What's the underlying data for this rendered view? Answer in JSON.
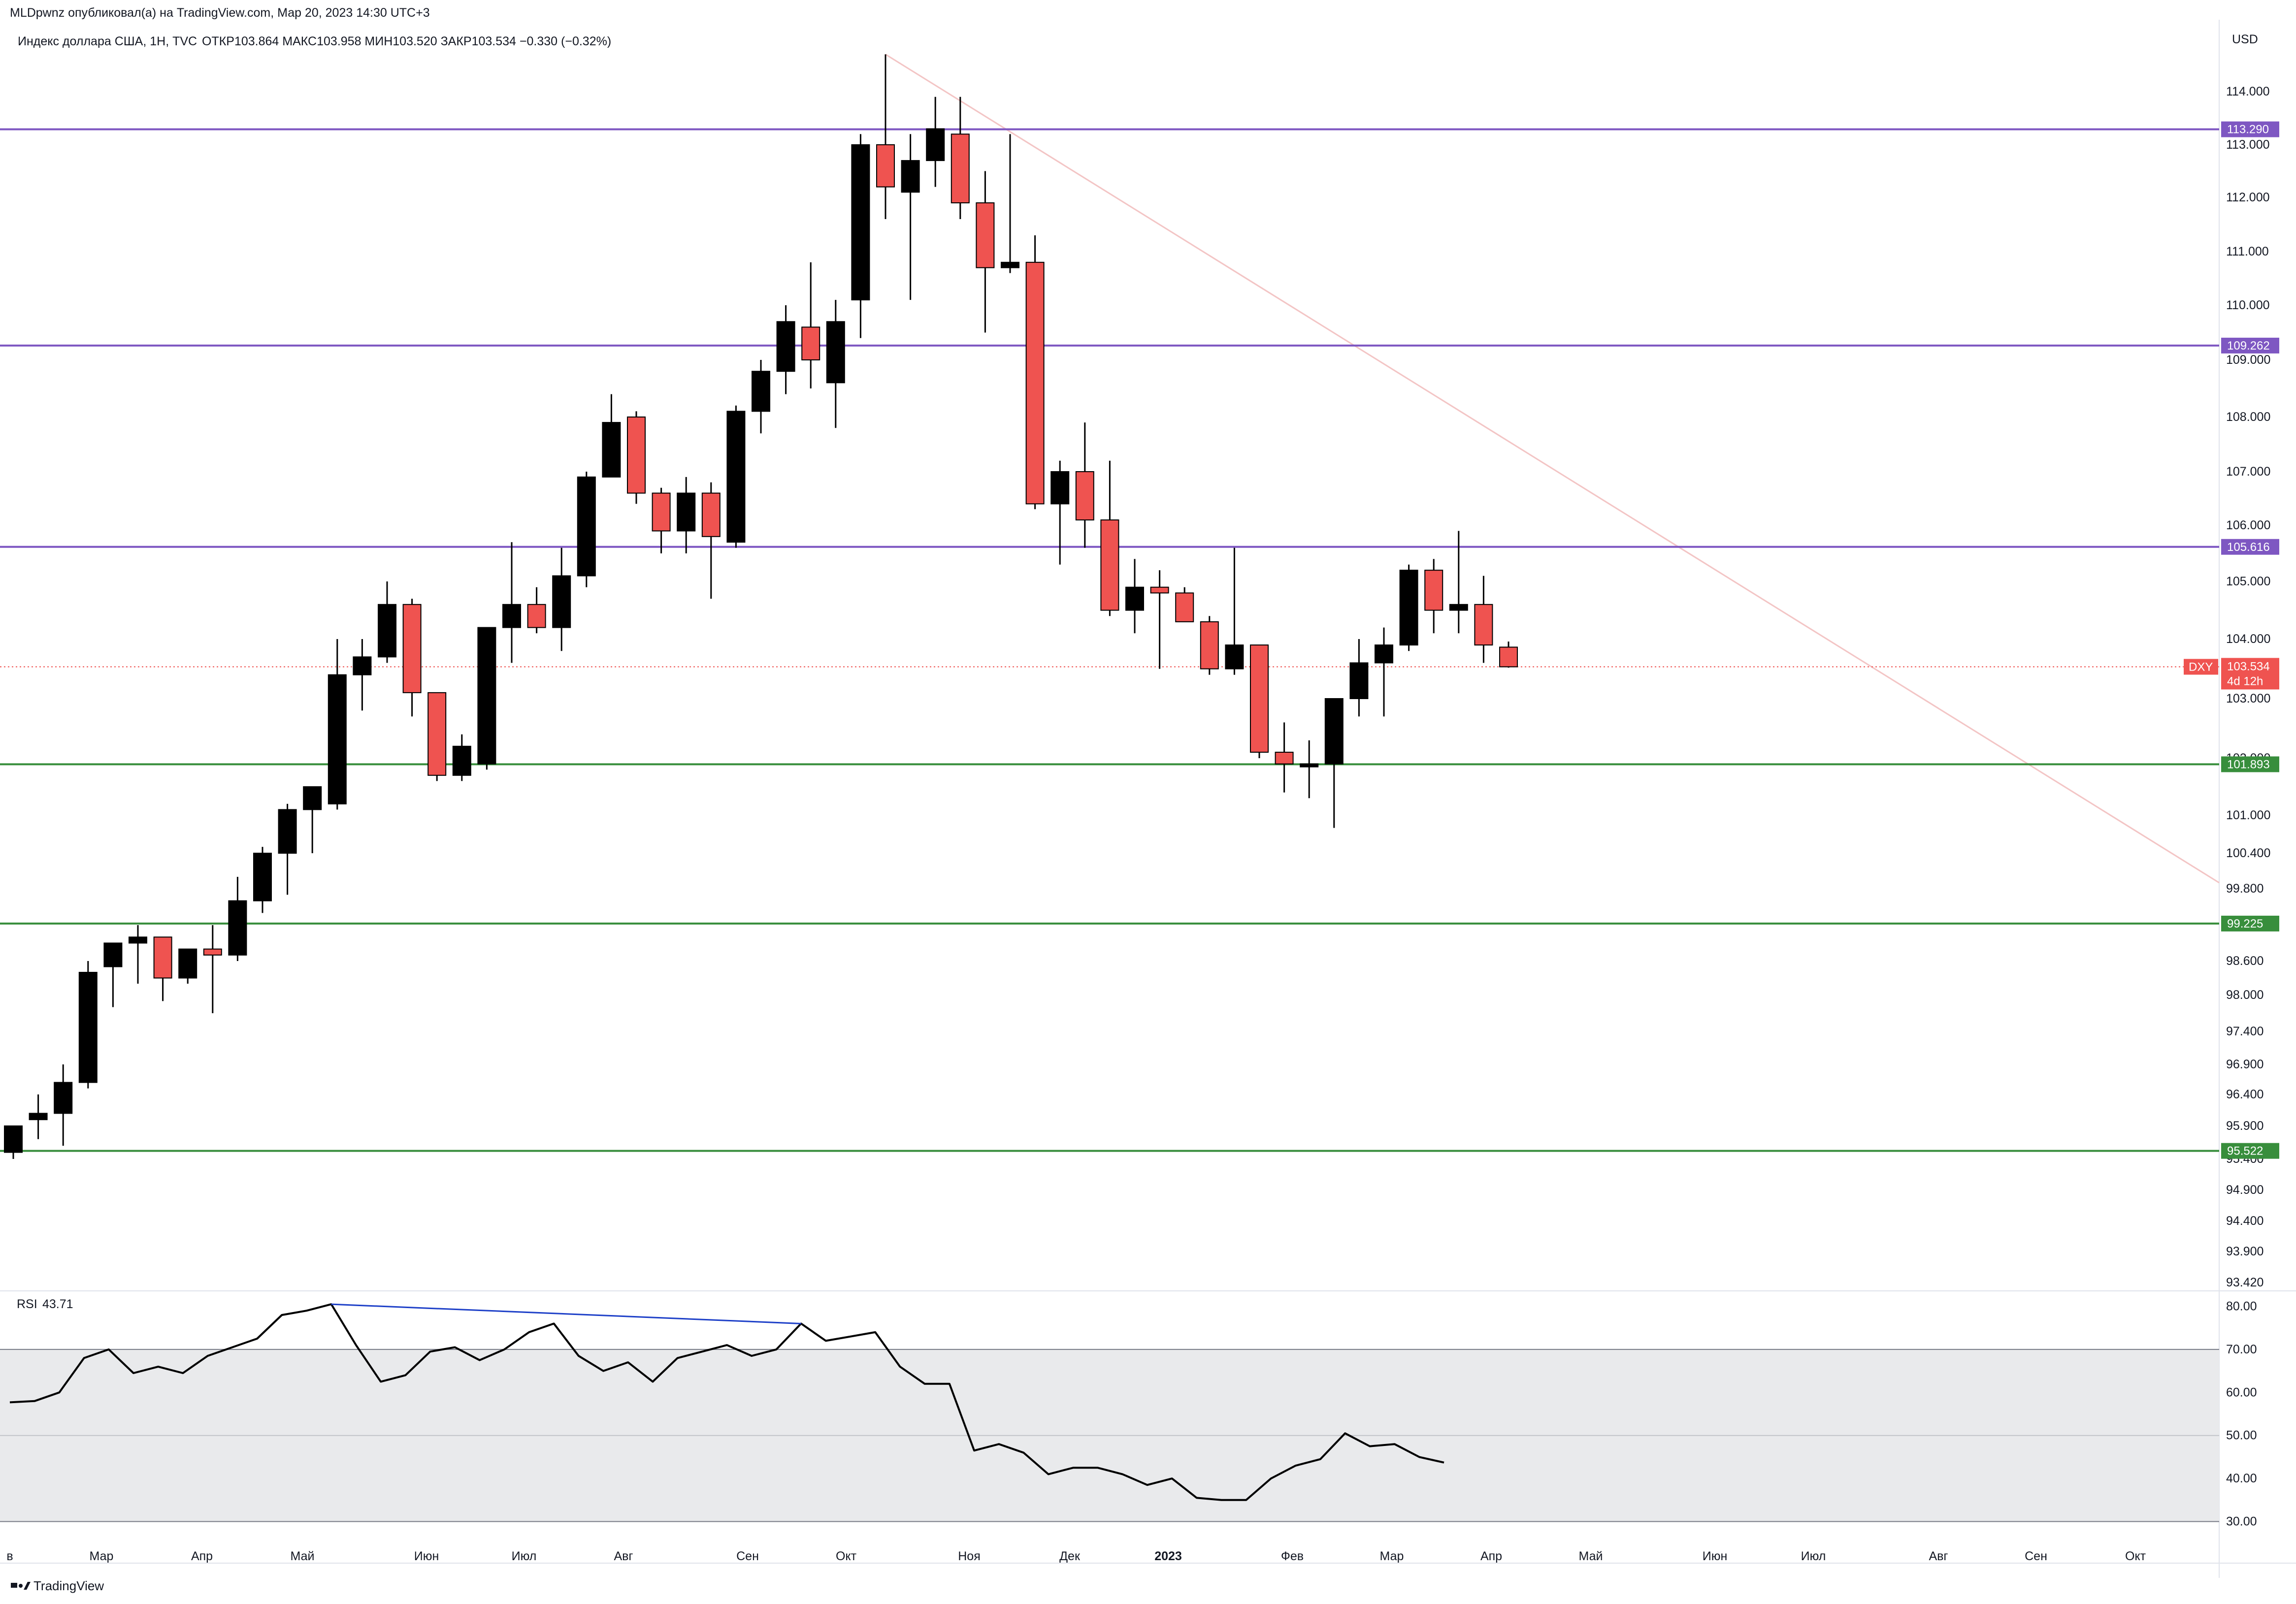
{
  "header": {
    "published": "MLDpwnz опубликовал(а) на TradingView.com, Мар 20, 2023 14:30 UTC+3",
    "symbol": "Индекс доллара США, 1Н, TVC",
    "ohlc": "ОТКР103.864  МАКС103.958  МИН103.520  ЗАКР103.534  −0.330 (−0.32%)"
  },
  "footer": {
    "brand": "TradingView"
  },
  "price_axis": {
    "currency": "USD",
    "ticks": [
      "114.000",
      "113.000",
      "112.000",
      "111.000",
      "110.000",
      "109.000",
      "108.000",
      "107.000",
      "106.000",
      "105.000",
      "104.000",
      "103.000",
      "102.000",
      "101.000",
      "100.400",
      "99.800",
      "99.200",
      "98.600",
      "98.000",
      "97.400",
      "96.900",
      "96.400",
      "95.900",
      "95.400",
      "94.900",
      "94.400",
      "93.900",
      "93.420"
    ]
  },
  "time_axis": {
    "labels": [
      "в",
      "Мар",
      "Апр",
      "Май",
      "Июн",
      "Июл",
      "Авг",
      "Сен",
      "Окт",
      "Ноя",
      "Дек",
      "2023",
      "Фев",
      "Мар",
      "Апр",
      "Май",
      "Июн",
      "Июл",
      "Авг",
      "Сен",
      "Окт"
    ]
  },
  "levels": [
    {
      "value": 113.29,
      "label": "113.290",
      "color": "#7e57c2"
    },
    {
      "value": 109.262,
      "label": "109.262",
      "color": "#7e57c2"
    },
    {
      "value": 105.616,
      "label": "105.616",
      "color": "#7e57c2"
    },
    {
      "value": 101.893,
      "label": "101.893",
      "color": "#388e3c"
    },
    {
      "value": 99.225,
      "label": "99.225",
      "color": "#388e3c"
    },
    {
      "value": 95.522,
      "label": "95.522",
      "color": "#388e3c"
    }
  ],
  "last_price": {
    "symbol": "DXY",
    "price": "103.534",
    "countdown": "4d 12h",
    "color": "#ef5350"
  },
  "colors": {
    "up": "#000000",
    "down": "#ef5350",
    "rsi_line": "#000000",
    "divergence": "#1e40c8",
    "rsi_band": "#e9eaec",
    "trendline": "#f3c5c5"
  },
  "chart_data": {
    "type": "candlestick",
    "ylabel": "USD",
    "ylim": [
      93.42,
      115.0
    ],
    "candles": [
      {
        "o": 95.5,
        "h": 95.9,
        "l": 95.4,
        "c": 95.9
      },
      {
        "o": 96.0,
        "h": 96.4,
        "l": 95.7,
        "c": 96.1
      },
      {
        "o": 96.1,
        "h": 96.9,
        "l": 95.6,
        "c": 96.6
      },
      {
        "o": 96.6,
        "h": 98.6,
        "l": 96.5,
        "c": 98.4
      },
      {
        "o": 98.5,
        "h": 98.9,
        "l": 97.8,
        "c": 98.9
      },
      {
        "o": 98.9,
        "h": 99.2,
        "l": 98.2,
        "c": 99.0
      },
      {
        "o": 99.0,
        "h": 99.0,
        "l": 97.9,
        "c": 98.3
      },
      {
        "o": 98.3,
        "h": 98.8,
        "l": 98.2,
        "c": 98.8
      },
      {
        "o": 98.8,
        "h": 99.2,
        "l": 97.7,
        "c": 98.7
      },
      {
        "o": 98.7,
        "h": 100.0,
        "l": 98.6,
        "c": 99.6
      },
      {
        "o": 99.6,
        "h": 100.5,
        "l": 99.4,
        "c": 100.4
      },
      {
        "o": 100.4,
        "h": 101.2,
        "l": 99.7,
        "c": 101.1
      },
      {
        "o": 101.1,
        "h": 101.3,
        "l": 100.4,
        "c": 101.5
      },
      {
        "o": 101.2,
        "h": 104.0,
        "l": 101.1,
        "c": 103.4
      },
      {
        "o": 103.4,
        "h": 104.0,
        "l": 102.8,
        "c": 103.7
      },
      {
        "o": 103.7,
        "h": 105.0,
        "l": 103.6,
        "c": 104.6
      },
      {
        "o": 104.6,
        "h": 104.7,
        "l": 102.7,
        "c": 103.1
      },
      {
        "o": 103.1,
        "h": 103.1,
        "l": 101.6,
        "c": 101.7
      },
      {
        "o": 101.7,
        "h": 102.4,
        "l": 101.6,
        "c": 102.2
      },
      {
        "o": 101.9,
        "h": 104.2,
        "l": 101.8,
        "c": 104.2
      },
      {
        "o": 104.2,
        "h": 105.7,
        "l": 103.6,
        "c": 104.6
      },
      {
        "o": 104.6,
        "h": 104.9,
        "l": 104.1,
        "c": 104.2
      },
      {
        "o": 104.2,
        "h": 105.6,
        "l": 103.8,
        "c": 105.1
      },
      {
        "o": 105.1,
        "h": 107.0,
        "l": 104.9,
        "c": 106.9
      },
      {
        "o": 106.9,
        "h": 108.4,
        "l": 106.9,
        "c": 107.9
      },
      {
        "o": 108.0,
        "h": 108.1,
        "l": 106.4,
        "c": 106.6
      },
      {
        "o": 106.6,
        "h": 106.7,
        "l": 105.5,
        "c": 105.9
      },
      {
        "o": 105.9,
        "h": 106.9,
        "l": 105.5,
        "c": 106.6
      },
      {
        "o": 106.6,
        "h": 106.8,
        "l": 104.7,
        "c": 105.8
      },
      {
        "o": 105.7,
        "h": 108.2,
        "l": 105.6,
        "c": 108.1
      },
      {
        "o": 108.1,
        "h": 109.0,
        "l": 107.7,
        "c": 108.8
      },
      {
        "o": 108.8,
        "h": 110.0,
        "l": 108.4,
        "c": 109.7
      },
      {
        "o": 109.6,
        "h": 110.8,
        "l": 108.5,
        "c": 109.0
      },
      {
        "o": 108.6,
        "h": 110.1,
        "l": 107.8,
        "c": 109.7
      },
      {
        "o": 110.1,
        "h": 113.2,
        "l": 109.4,
        "c": 113.0
      },
      {
        "o": 113.0,
        "h": 114.7,
        "l": 111.6,
        "c": 112.2
      },
      {
        "o": 112.1,
        "h": 113.2,
        "l": 110.1,
        "c": 112.7
      },
      {
        "o": 112.7,
        "h": 113.9,
        "l": 112.2,
        "c": 113.3
      },
      {
        "o": 113.2,
        "h": 113.9,
        "l": 111.6,
        "c": 111.9
      },
      {
        "o": 111.9,
        "h": 112.5,
        "l": 109.5,
        "c": 110.7
      },
      {
        "o": 110.7,
        "h": 113.2,
        "l": 110.6,
        "c": 110.8
      },
      {
        "o": 110.8,
        "h": 111.3,
        "l": 106.3,
        "c": 106.4
      },
      {
        "o": 106.4,
        "h": 107.2,
        "l": 105.3,
        "c": 107.0
      },
      {
        "o": 107.0,
        "h": 107.9,
        "l": 105.6,
        "c": 106.1
      },
      {
        "o": 106.1,
        "h": 107.2,
        "l": 104.4,
        "c": 104.5
      },
      {
        "o": 104.5,
        "h": 105.4,
        "l": 104.1,
        "c": 104.9
      },
      {
        "o": 104.9,
        "h": 105.2,
        "l": 103.5,
        "c": 104.8
      },
      {
        "o": 104.8,
        "h": 104.9,
        "l": 104.3,
        "c": 104.3
      },
      {
        "o": 104.3,
        "h": 104.4,
        "l": 103.4,
        "c": 103.5
      },
      {
        "o": 103.5,
        "h": 105.6,
        "l": 103.4,
        "c": 103.9
      },
      {
        "o": 103.9,
        "h": 103.9,
        "l": 102.0,
        "c": 102.1
      },
      {
        "o": 102.1,
        "h": 102.6,
        "l": 101.4,
        "c": 101.9
      },
      {
        "o": 101.9,
        "h": 102.3,
        "l": 101.3,
        "c": 101.9
      },
      {
        "o": 101.9,
        "h": 103.0,
        "l": 100.8,
        "c": 103.0
      },
      {
        "o": 103.0,
        "h": 104.0,
        "l": 102.7,
        "c": 103.6
      },
      {
        "o": 103.6,
        "h": 104.2,
        "l": 102.7,
        "c": 103.9
      },
      {
        "o": 103.9,
        "h": 105.3,
        "l": 103.8,
        "c": 105.2
      },
      {
        "o": 105.2,
        "h": 105.4,
        "l": 104.1,
        "c": 104.5
      },
      {
        "o": 104.5,
        "h": 105.9,
        "l": 104.1,
        "c": 104.6
      },
      {
        "o": 104.6,
        "h": 105.1,
        "l": 103.6,
        "c": 103.9
      },
      {
        "o": 103.864,
        "h": 103.958,
        "l": 103.52,
        "c": 103.534
      }
    ],
    "rsi": {
      "label": "RSI",
      "value": "43.71",
      "axis": [
        "80.00",
        "70.00",
        "60.00",
        "50.00",
        "40.00",
        "30.00"
      ],
      "ylim": [
        28,
        82
      ],
      "band": [
        30,
        70
      ],
      "midline": 50,
      "values": [
        57.7,
        58,
        60,
        68,
        70,
        64.5,
        66,
        64.5,
        68.5,
        70.5,
        72.5,
        78,
        79,
        80.5,
        71,
        62.5,
        64,
        69.5,
        70.5,
        67.5,
        70,
        74,
        76,
        68.5,
        65,
        67,
        62.5,
        68,
        69.5,
        71,
        68.5,
        70,
        76,
        72,
        73,
        74,
        66,
        62,
        62,
        46.5,
        48,
        46,
        41,
        42.5,
        42.5,
        41,
        38.5,
        40,
        35.5,
        35,
        35,
        40,
        43,
        44.5,
        50.5,
        47.5,
        48,
        45,
        43.71
      ]
    },
    "divergence": {
      "from_rsi": 80.5,
      "to_rsi": 76
    },
    "trendline": {
      "start_price": 114.7,
      "end_price": 99.9
    }
  }
}
